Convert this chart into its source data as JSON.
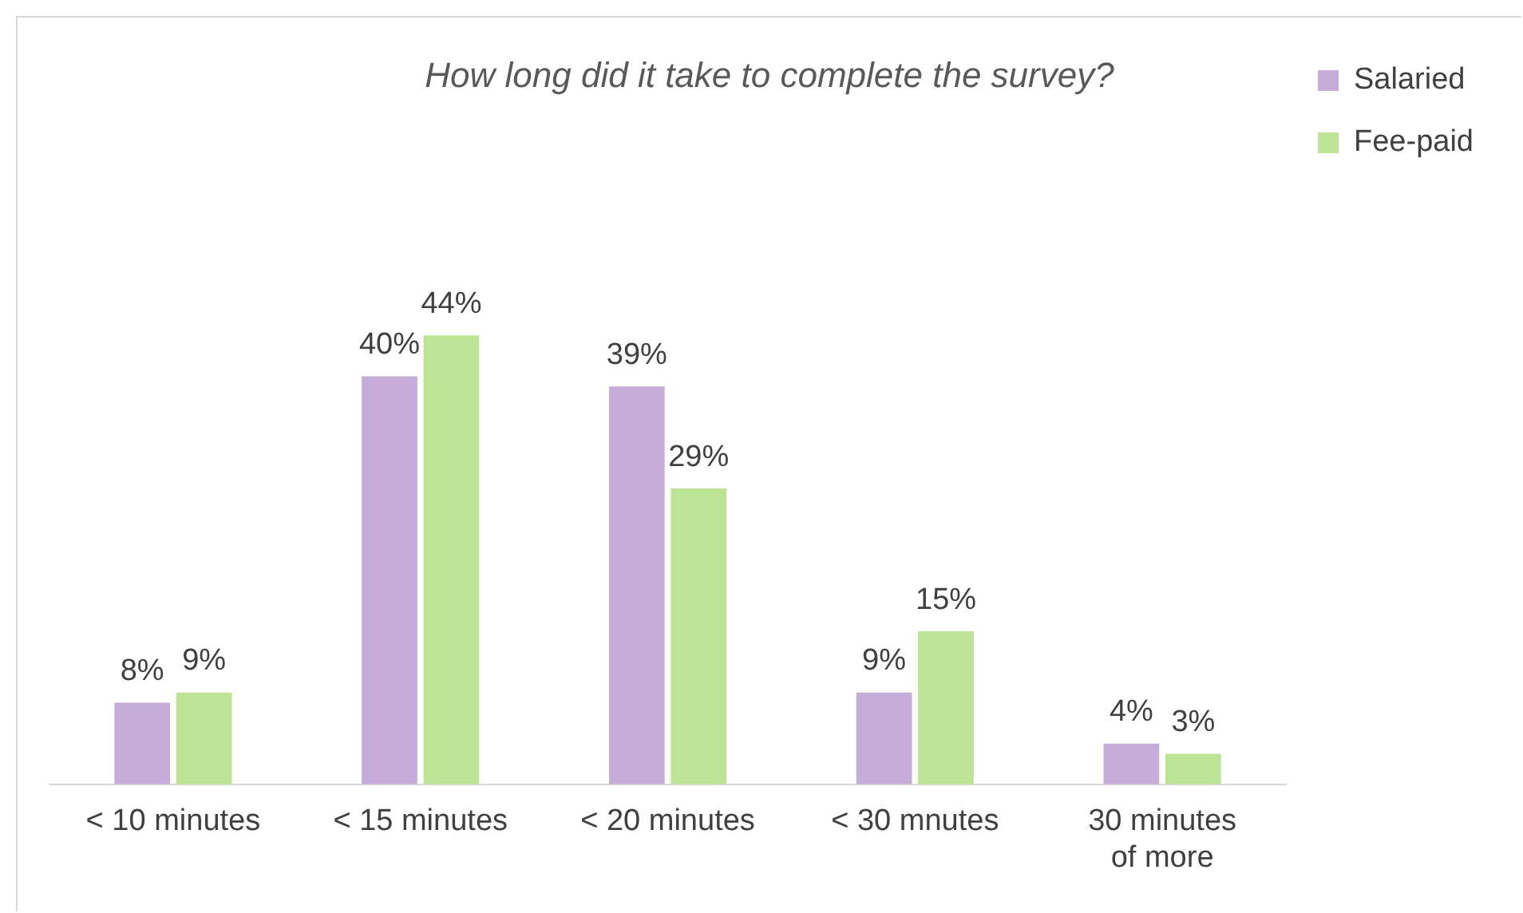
{
  "chart_data": {
    "type": "bar",
    "title": "How long did it take to complete the survey?",
    "categories": [
      "< 10 minutes",
      "< 15 minutes",
      "< 20 minutes",
      "< 30 mnutes",
      "30 minutes of more"
    ],
    "series": [
      {
        "name": "Salaried",
        "color": "#c5acd9",
        "values": [
          8,
          40,
          39,
          9,
          4
        ],
        "value_labels": [
          "8%",
          "40%",
          "39%",
          "9%",
          "4%"
        ]
      },
      {
        "name": "Fee-paid",
        "color": "#bde395",
        "values": [
          9,
          44,
          29,
          15,
          3
        ],
        "value_labels": [
          "9%",
          "44%",
          "29%",
          "15%",
          "3%"
        ]
      }
    ],
    "legend": "top right",
    "grid": false
  }
}
